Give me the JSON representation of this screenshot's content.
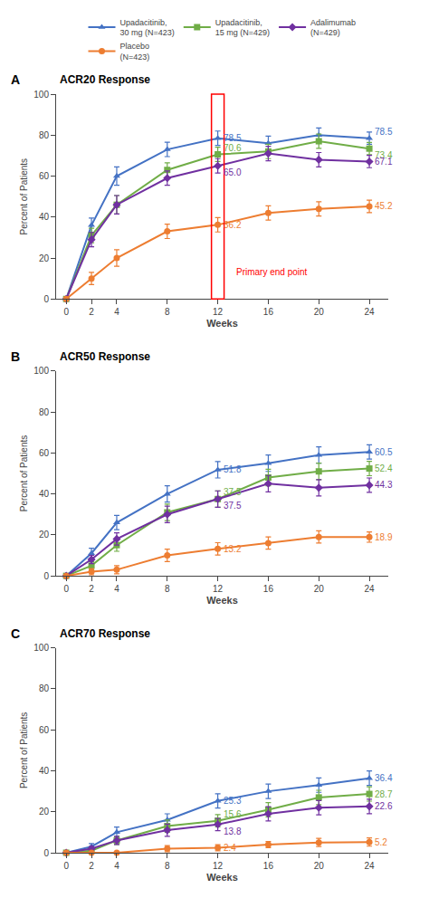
{
  "chart_data": [
    {
      "type": "line",
      "title": "ACR20 Response",
      "xlabel": "Weeks",
      "ylabel": "Percent of Patients",
      "x": [
        0,
        2,
        4,
        8,
        12,
        16,
        20,
        24
      ],
      "xlim": [
        -0.8,
        25.5
      ],
      "xticks": [
        0,
        2,
        4,
        8,
        12,
        16,
        20,
        24
      ],
      "ylim": [
        0,
        100
      ],
      "yticks": [
        0,
        20,
        40,
        60,
        80,
        100
      ],
      "grid": false,
      "legend": "top",
      "series": [
        {
          "name": "Upadacitinib,\n30 mg (N=423)",
          "color": "#4472C4",
          "marker": "triangle-up",
          "values": [
            0,
            36,
            60,
            73,
            78.5,
            76,
            80,
            78.5
          ],
          "errors": [
            0,
            3.5,
            4.5,
            3.5,
            3.5,
            3.5,
            3.5,
            3.0
          ]
        },
        {
          "name": "Upadacitinib,\n15 mg (N=429)",
          "color": "#70AD47",
          "marker": "square",
          "values": [
            0,
            31,
            46,
            63,
            70.6,
            72,
            77,
            73.4
          ],
          "errors": [
            0,
            3.5,
            4.5,
            3.5,
            3.5,
            3.5,
            3.5,
            3.0
          ]
        },
        {
          "name": "Adalimumab\n(N=429)",
          "color": "#7030A0",
          "marker": "diamond",
          "values": [
            0,
            29,
            46,
            59,
            65.0,
            71,
            68,
            67.1
          ],
          "errors": [
            0,
            3.5,
            4.5,
            3.5,
            3.5,
            3.5,
            3.5,
            3.0
          ]
        },
        {
          "name": "Placebo\n(N=423)",
          "color": "#ED7D31",
          "marker": "circle",
          "values": [
            0,
            10,
            20,
            33,
            36.2,
            42,
            44,
            45.2
          ],
          "errors": [
            0,
            3.0,
            4.0,
            3.5,
            3.5,
            3.5,
            3.5,
            3.0
          ]
        }
      ],
      "annotations": [
        {
          "text": "A"
        },
        {
          "text": "78.5",
          "x": 12,
          "y": 78.5,
          "color": "#4472C4"
        },
        {
          "text": "70.6",
          "x": 12,
          "y": 70.6,
          "color": "#70AD47"
        },
        {
          "text": "65.0",
          "x": 12,
          "y": 65.0,
          "color": "#7030A0"
        },
        {
          "text": "36.2",
          "x": 12,
          "y": 36.2,
          "color": "#ED7D31"
        },
        {
          "text": "78.5",
          "x": 24,
          "y": 78.5,
          "color": "#4472C4"
        },
        {
          "text": "73.4",
          "x": 24,
          "y": 73.4,
          "color": "#70AD47"
        },
        {
          "text": "67.1",
          "x": 24,
          "y": 67.1,
          "color": "#7030A0"
        },
        {
          "text": "45.2",
          "x": 24,
          "y": 45.2,
          "color": "#ED7D31"
        },
        {
          "text": "Primary end point",
          "x": 13,
          "y": 13,
          "color": "red",
          "box_x": [
            11.5,
            12.5
          ]
        }
      ]
    },
    {
      "type": "line",
      "title": "ACR50 Response",
      "xlabel": "Weeks",
      "ylabel": "Percent of Patients",
      "x": [
        0,
        2,
        4,
        8,
        12,
        16,
        20,
        24
      ],
      "xlim": [
        -0.8,
        25.5
      ],
      "xticks": [
        0,
        2,
        4,
        8,
        12,
        16,
        20,
        24
      ],
      "ylim": [
        0,
        100
      ],
      "yticks": [
        0,
        20,
        40,
        60,
        80,
        100
      ],
      "grid": false,
      "series": [
        {
          "name": "Upadacitinib,\n30 mg (N=423)",
          "color": "#4472C4",
          "marker": "triangle-up",
          "values": [
            0,
            11,
            26,
            40,
            51.8,
            55,
            59,
            60.5
          ],
          "errors": [
            0,
            2.5,
            3.5,
            4.0,
            4.0,
            4.0,
            4.0,
            3.5
          ]
        },
        {
          "name": "Upadacitinib,\n15 mg (N=429)",
          "color": "#70AD47",
          "marker": "square",
          "values": [
            0,
            5,
            15,
            31,
            37.5,
            48,
            51,
            52.4
          ],
          "errors": [
            0,
            2.0,
            3.0,
            4.0,
            4.0,
            4.0,
            4.0,
            3.5
          ]
        },
        {
          "name": "Adalimumab\n(N=429)",
          "color": "#7030A0",
          "marker": "diamond",
          "values": [
            0,
            8,
            18,
            30,
            37.5,
            45,
            43,
            44.3
          ],
          "errors": [
            0,
            2.0,
            3.0,
            4.0,
            4.0,
            4.0,
            4.0,
            3.5
          ]
        },
        {
          "name": "Placebo\n(N=423)",
          "color": "#ED7D31",
          "marker": "circle",
          "values": [
            0,
            2,
            3,
            10,
            13.2,
            16,
            19,
            18.9
          ],
          "errors": [
            0,
            1.5,
            2.0,
            3.0,
            3.0,
            3.0,
            3.0,
            2.5
          ]
        }
      ],
      "annotations": [
        {
          "text": "B"
        },
        {
          "text": "51.8",
          "x": 12,
          "y": 51.8,
          "color": "#4472C4"
        },
        {
          "text": "37.5",
          "x": 12,
          "y": 37.5,
          "color": "#70AD47"
        },
        {
          "text": "37.5",
          "x": 12,
          "y": 37.5,
          "color": "#7030A0"
        },
        {
          "text": "13.2",
          "x": 12,
          "y": 13.2,
          "color": "#ED7D31"
        },
        {
          "text": "60.5",
          "x": 24,
          "y": 60.5,
          "color": "#4472C4"
        },
        {
          "text": "52.4",
          "x": 24,
          "y": 52.4,
          "color": "#70AD47"
        },
        {
          "text": "44.3",
          "x": 24,
          "y": 44.3,
          "color": "#7030A0"
        },
        {
          "text": "18.9",
          "x": 24,
          "y": 18.9,
          "color": "#ED7D31"
        }
      ]
    },
    {
      "type": "line",
      "title": "ACR70 Response",
      "xlabel": "Weeks",
      "ylabel": "Percent of Patients",
      "x": [
        0,
        2,
        4,
        8,
        12,
        16,
        20,
        24
      ],
      "xlim": [
        -0.8,
        25.5
      ],
      "xticks": [
        0,
        2,
        4,
        8,
        12,
        16,
        20,
        24
      ],
      "ylim": [
        0,
        100
      ],
      "yticks": [
        0,
        20,
        40,
        60,
        80,
        100
      ],
      "grid": false,
      "series": [
        {
          "name": "Upadacitinib,\n30 mg (N=423)",
          "color": "#4472C4",
          "marker": "triangle-up",
          "values": [
            0,
            3,
            10,
            16,
            25.3,
            30,
            33,
            36.4
          ],
          "errors": [
            0,
            1.5,
            2.5,
            3.0,
            3.5,
            3.5,
            3.5,
            3.5
          ]
        },
        {
          "name": "Upadacitinib,\n15 mg (N=429)",
          "color": "#70AD47",
          "marker": "square",
          "values": [
            0,
            1,
            6,
            13,
            15.6,
            21,
            27,
            28.7
          ],
          "errors": [
            0,
            1.0,
            2.0,
            3.0,
            3.0,
            3.5,
            3.5,
            3.5
          ]
        },
        {
          "name": "Adalimumab\n(N=429)",
          "color": "#7030A0",
          "marker": "diamond",
          "values": [
            0,
            2,
            6,
            11,
            13.8,
            19,
            22,
            22.6
          ],
          "errors": [
            0,
            1.0,
            2.0,
            3.0,
            3.0,
            3.5,
            3.5,
            3.5
          ]
        },
        {
          "name": "Placebo\n(N=423)",
          "color": "#ED7D31",
          "marker": "circle",
          "values": [
            0,
            0,
            0,
            2,
            2.4,
            4,
            5,
            5.2
          ],
          "errors": [
            0,
            0.5,
            0.5,
            1.5,
            1.5,
            1.5,
            2.0,
            2.0
          ]
        }
      ],
      "annotations": [
        {
          "text": "C"
        },
        {
          "text": "25.3",
          "x": 12,
          "y": 25.3,
          "color": "#4472C4"
        },
        {
          "text": "15.6",
          "x": 12,
          "y": 15.6,
          "color": "#70AD47"
        },
        {
          "text": "13.8",
          "x": 12,
          "y": 13.8,
          "color": "#7030A0"
        },
        {
          "text": "2.4",
          "x": 12,
          "y": 2.4,
          "color": "#ED7D31"
        },
        {
          "text": "36.4",
          "x": 24,
          "y": 36.4,
          "color": "#4472C4"
        },
        {
          "text": "28.7",
          "x": 24,
          "y": 28.7,
          "color": "#70AD47"
        },
        {
          "text": "22.6",
          "x": 24,
          "y": 22.6,
          "color": "#7030A0"
        },
        {
          "text": "5.2",
          "x": 24,
          "y": 5.2,
          "color": "#ED7D31"
        }
      ]
    }
  ]
}
